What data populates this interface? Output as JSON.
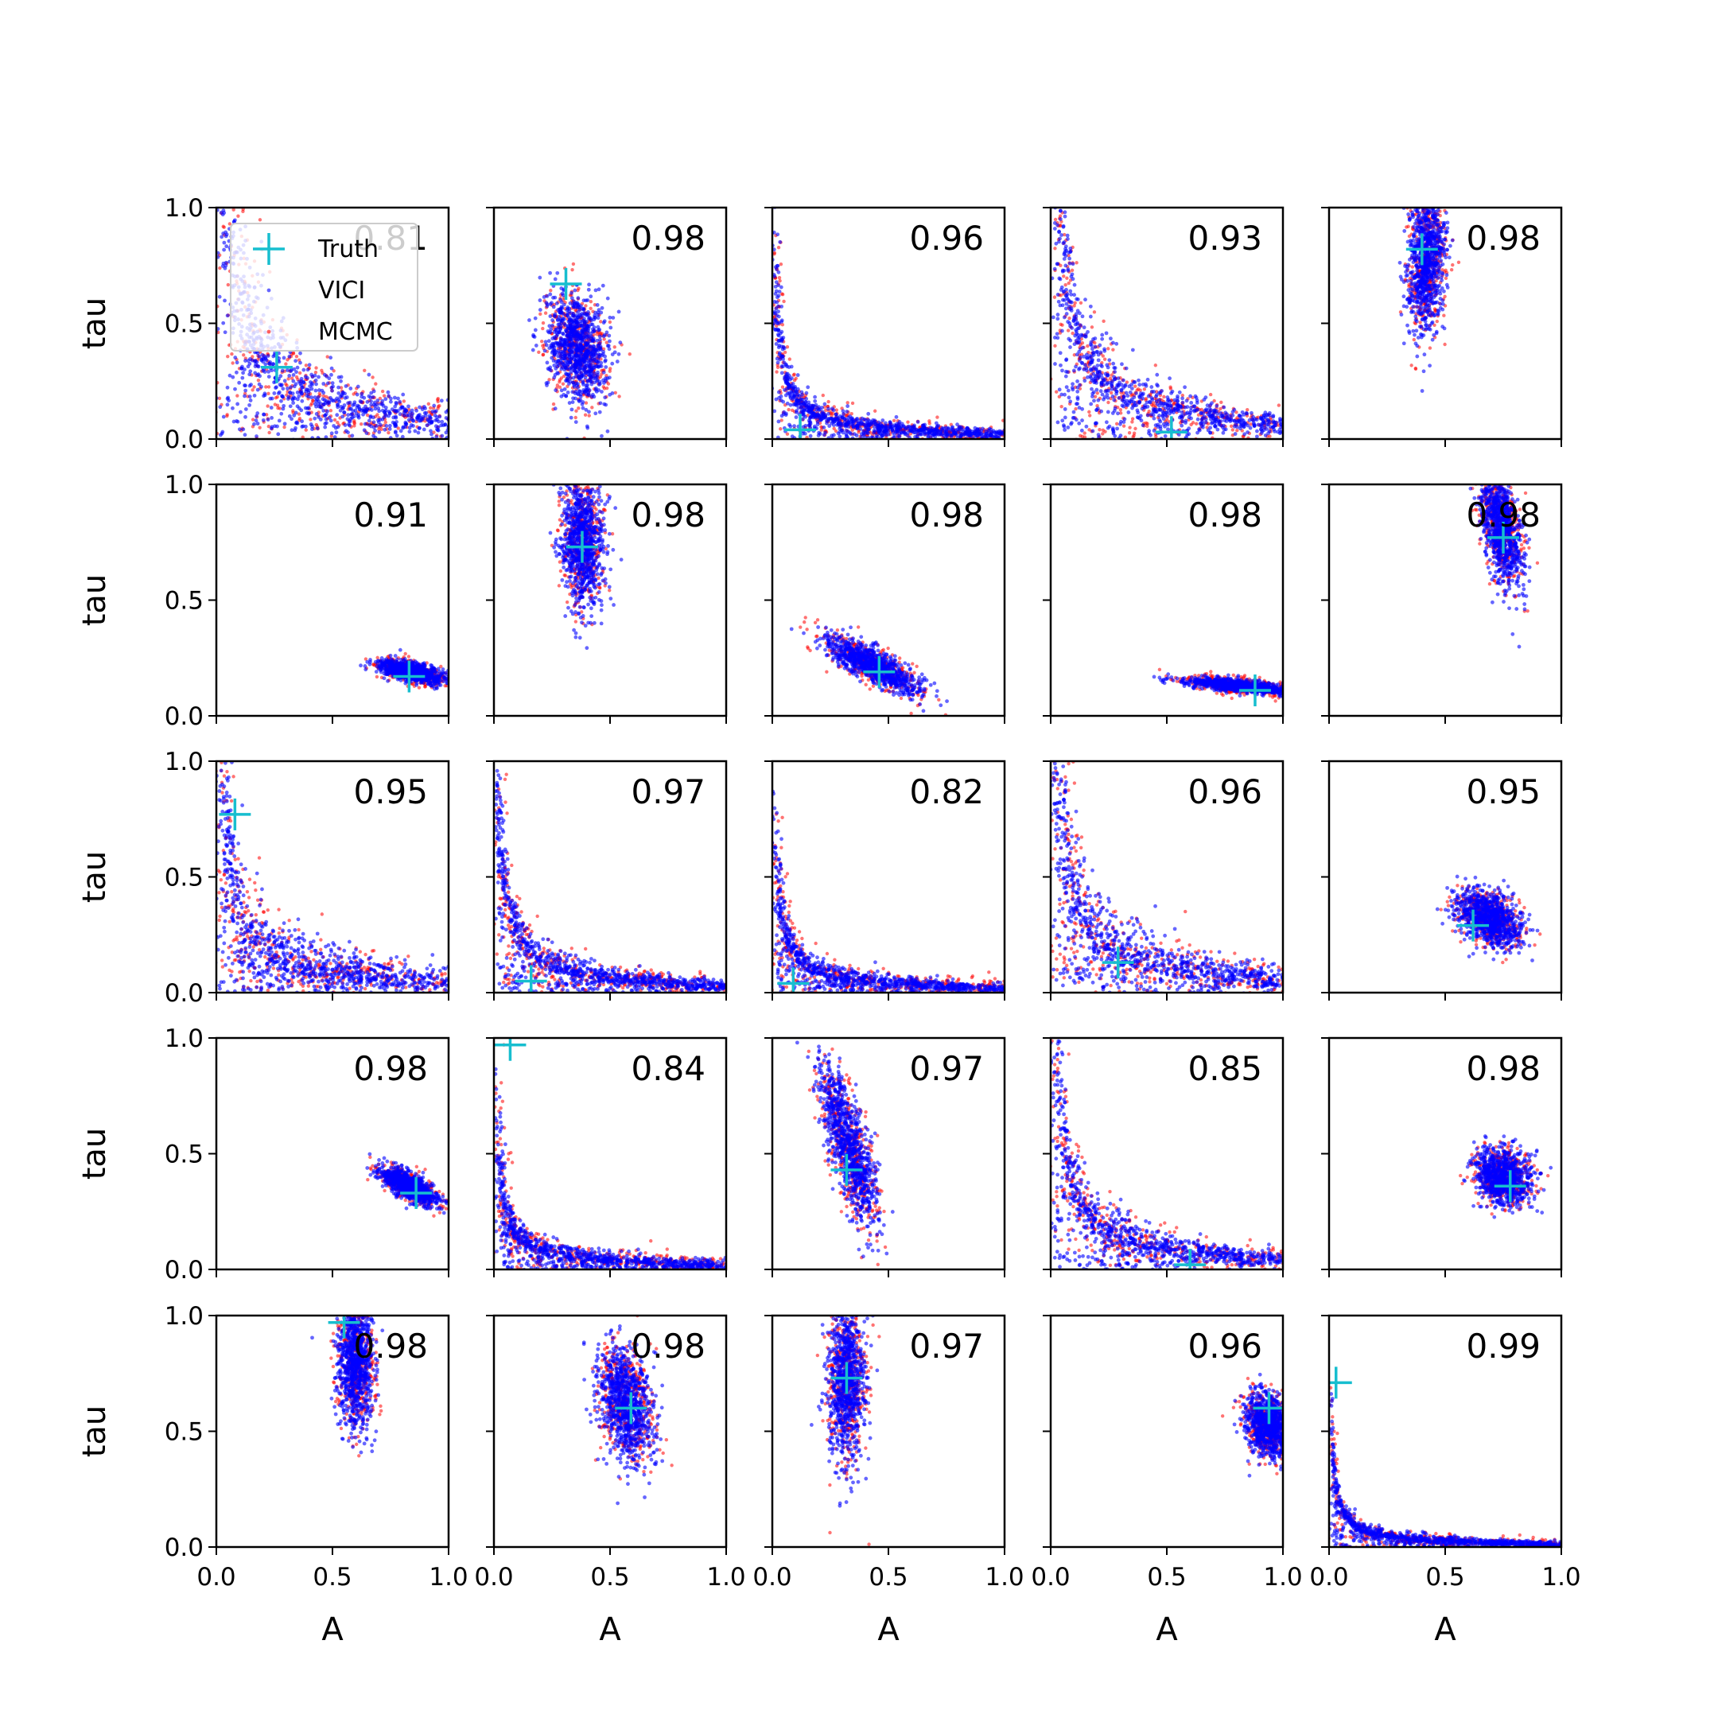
{
  "figure": {
    "rows": 5,
    "cols": 5,
    "xlabel": "A",
    "ylabel": "tau",
    "xticks": [
      "0.0",
      "0.5",
      "1.0"
    ],
    "yticks": [
      "0.0",
      "0.5",
      "1.0"
    ]
  },
  "legend": {
    "placement": "upper-left of first panel",
    "entries": [
      {
        "label": "Truth",
        "marker": "plus",
        "color": "#17becf"
      },
      {
        "label": "VICI",
        "marker": "dot",
        "color": "#0000ff"
      },
      {
        "label": "MCMC",
        "marker": "dot",
        "color": "#ff0000"
      }
    ]
  },
  "colors": {
    "vici": "#0000ff",
    "mcmc": "#ff0000",
    "truth": "#17becf"
  },
  "chart_data": {
    "type": "scatter",
    "xlabel": "A",
    "ylabel": "tau",
    "xlim": [
      0,
      1
    ],
    "ylim": [
      0,
      1
    ],
    "grid": false,
    "series_names": [
      "Truth",
      "VICI",
      "MCMC"
    ],
    "panels": [
      {
        "overlap": "0.81",
        "truth": [
          0.26,
          0.31
        ],
        "shape": "curve",
        "params": {
          "a": 0.06,
          "b": 0.08,
          "c": 0.02
        },
        "vici_extra": 0.03,
        "mcmc_extra": 0.05
      },
      {
        "overlap": "0.98",
        "truth": [
          0.31,
          0.67
        ],
        "shape": "ellipse",
        "params": {
          "cx": 0.36,
          "cy": 0.4,
          "sx": 0.065,
          "sy": 0.12,
          "rho": -0.2
        },
        "vici_extra": 0.0,
        "mcmc_extra": 0.01
      },
      {
        "overlap": "0.96",
        "truth": [
          0.12,
          0.04
        ],
        "shape": "curve",
        "params": {
          "a": 0.018,
          "b": 0.02,
          "c": 0.005
        },
        "vici_extra": 0.01,
        "mcmc_extra": 0.015
      },
      {
        "overlap": "0.93",
        "truth": [
          0.52,
          0.03
        ],
        "shape": "curve",
        "params": {
          "a": 0.05,
          "b": 0.06,
          "c": 0.015
        },
        "vici_extra": 0.02,
        "mcmc_extra": 0.025
      },
      {
        "overlap": "0.98",
        "truth": [
          0.4,
          0.82
        ],
        "shape": "ellipse",
        "params": {
          "cx": 0.42,
          "cy": 0.78,
          "sx": 0.04,
          "sy": 0.16,
          "rho": 0.1
        },
        "vici_extra": 0.0,
        "mcmc_extra": 0.01
      },
      {
        "overlap": "0.91",
        "truth": [
          0.83,
          0.17
        ],
        "shape": "ellipse",
        "params": {
          "cx": 0.84,
          "cy": 0.19,
          "sx": 0.07,
          "sy": 0.025,
          "rho": -0.6
        },
        "vici_extra": 0.0,
        "mcmc_extra": 0.01
      },
      {
        "overlap": "0.98",
        "truth": [
          0.38,
          0.73
        ],
        "shape": "ellipse",
        "params": {
          "cx": 0.38,
          "cy": 0.75,
          "sx": 0.045,
          "sy": 0.14,
          "rho": -0.1
        },
        "vici_extra": 0.0,
        "mcmc_extra": 0.01
      },
      {
        "overlap": "0.98",
        "truth": [
          0.46,
          0.19
        ],
        "shape": "ellipse",
        "params": {
          "cx": 0.43,
          "cy": 0.22,
          "sx": 0.1,
          "sy": 0.06,
          "rho": -0.8
        },
        "vici_extra": 0.0,
        "mcmc_extra": 0.01
      },
      {
        "overlap": "0.98",
        "truth": [
          0.88,
          0.11
        ],
        "shape": "ellipse",
        "params": {
          "cx": 0.82,
          "cy": 0.13,
          "sx": 0.13,
          "sy": 0.018,
          "rho": -0.7
        },
        "vici_extra": 0.0,
        "mcmc_extra": 0.01
      },
      {
        "overlap": "0.98",
        "truth": [
          0.75,
          0.77
        ],
        "shape": "ellipse",
        "params": {
          "cx": 0.74,
          "cy": 0.82,
          "sx": 0.045,
          "sy": 0.13,
          "rho": -0.5
        },
        "vici_extra": 0.0,
        "mcmc_extra": 0.01
      },
      {
        "overlap": "0.95",
        "truth": [
          0.08,
          0.77
        ],
        "shape": "curve",
        "params": {
          "a": 0.03,
          "b": 0.07,
          "c": 0.01
        },
        "vici_extra": 0.02,
        "mcmc_extra": 0.03
      },
      {
        "overlap": "0.97",
        "truth": [
          0.16,
          0.05
        ],
        "shape": "curve",
        "params": {
          "a": 0.025,
          "b": 0.03,
          "c": 0.008
        },
        "vici_extra": 0.01,
        "mcmc_extra": 0.02
      },
      {
        "overlap": "0.82",
        "truth": [
          0.09,
          0.04
        ],
        "shape": "curve",
        "params": {
          "a": 0.016,
          "b": 0.02,
          "c": 0.006
        },
        "vici_extra": 0.01,
        "mcmc_extra": 0.02
      },
      {
        "overlap": "0.96",
        "truth": [
          0.29,
          0.13
        ],
        "shape": "curve",
        "params": {
          "a": 0.04,
          "b": 0.07,
          "c": 0.02
        },
        "vici_extra": 0.02,
        "mcmc_extra": 0.04
      },
      {
        "overlap": "0.95",
        "truth": [
          0.62,
          0.29
        ],
        "shape": "ellipse",
        "params": {
          "cx": 0.69,
          "cy": 0.32,
          "sx": 0.07,
          "sy": 0.06,
          "rho": -0.4
        },
        "vici_extra": 0.0,
        "mcmc_extra": 0.01
      },
      {
        "overlap": "0.98",
        "truth": [
          0.86,
          0.33
        ],
        "shape": "ellipse",
        "params": {
          "cx": 0.83,
          "cy": 0.36,
          "sx": 0.06,
          "sy": 0.04,
          "rho": -0.7
        },
        "vici_extra": 0.0,
        "mcmc_extra": 0.01
      },
      {
        "overlap": "0.84",
        "truth": [
          0.07,
          0.97
        ],
        "shape": "curve",
        "params": {
          "a": 0.015,
          "b": 0.02,
          "c": 0.006
        },
        "vici_extra": 0.01,
        "mcmc_extra": 0.02
      },
      {
        "overlap": "0.97",
        "truth": [
          0.32,
          0.43
        ],
        "shape": "ellipse",
        "params": {
          "cx": 0.33,
          "cy": 0.53,
          "sx": 0.06,
          "sy": 0.17,
          "rho": -0.75
        },
        "vici_extra": 0.0,
        "mcmc_extra": 0.015
      },
      {
        "overlap": "0.85",
        "truth": [
          0.6,
          0.02
        ],
        "shape": "curve",
        "params": {
          "a": 0.035,
          "b": 0.04,
          "c": 0.01
        },
        "vici_extra": 0.015,
        "mcmc_extra": 0.025
      },
      {
        "overlap": "0.98",
        "truth": [
          0.78,
          0.36
        ],
        "shape": "ellipse",
        "params": {
          "cx": 0.75,
          "cy": 0.4,
          "sx": 0.06,
          "sy": 0.06,
          "rho": -0.2
        },
        "vici_extra": 0.0,
        "mcmc_extra": 0.01
      },
      {
        "overlap": "0.98",
        "truth": [
          0.55,
          0.97
        ],
        "shape": "ellipse",
        "params": {
          "cx": 0.6,
          "cy": 0.8,
          "sx": 0.04,
          "sy": 0.15,
          "rho": 0.0
        },
        "vici_extra": 0.0,
        "mcmc_extra": 0.01
      },
      {
        "overlap": "0.98",
        "truth": [
          0.59,
          0.6
        ],
        "shape": "ellipse",
        "params": {
          "cx": 0.57,
          "cy": 0.62,
          "sx": 0.06,
          "sy": 0.12,
          "rho": -0.3
        },
        "vici_extra": 0.0,
        "mcmc_extra": 0.015
      },
      {
        "overlap": "0.97",
        "truth": [
          0.32,
          0.73
        ],
        "shape": "ellipse",
        "params": {
          "cx": 0.32,
          "cy": 0.72,
          "sx": 0.04,
          "sy": 0.17,
          "rho": 0.0
        },
        "vici_extra": 0.0,
        "mcmc_extra": 0.015
      },
      {
        "overlap": "0.96",
        "truth": [
          0.94,
          0.6
        ],
        "shape": "ellipse",
        "params": {
          "cx": 0.94,
          "cy": 0.53,
          "sx": 0.05,
          "sy": 0.07,
          "rho": -0.2
        },
        "vici_extra": 0.0,
        "mcmc_extra": 0.01
      },
      {
        "overlap": "0.99",
        "truth": [
          0.03,
          0.71
        ],
        "shape": "curve",
        "params": {
          "a": 0.01,
          "b": 0.012,
          "c": 0.004
        },
        "vici_extra": 0.005,
        "mcmc_extra": 0.01
      }
    ]
  }
}
